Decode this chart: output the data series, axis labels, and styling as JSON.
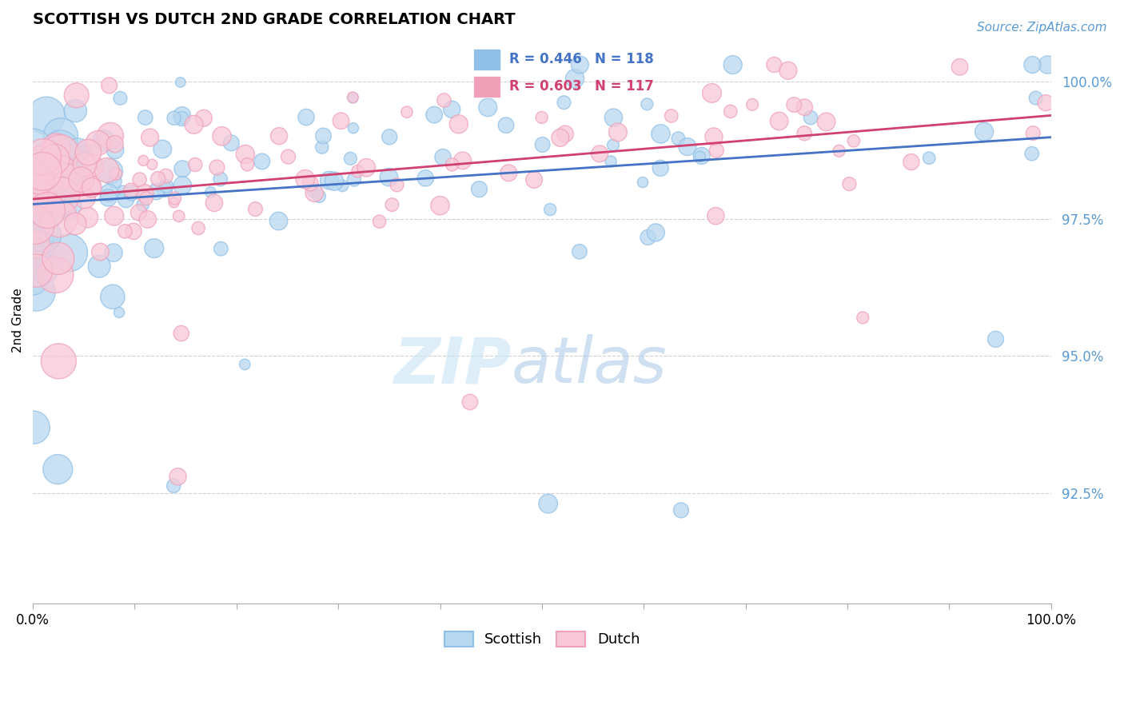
{
  "title": "SCOTTISH VS DUTCH 2ND GRADE CORRELATION CHART",
  "source": "Source: ZipAtlas.com",
  "ylabel": "2nd Grade",
  "y_ticks": [
    0.925,
    0.95,
    0.975,
    1.0
  ],
  "y_tick_labels": [
    "92.5%",
    "95.0%",
    "97.5%",
    "100.0%"
  ],
  "x_range": [
    0.0,
    1.0
  ],
  "y_range": [
    0.905,
    1.008
  ],
  "scottish_color": "#90C0E8",
  "scottish_fill": "#B8D8F0",
  "dutch_color": "#F0A0B8",
  "dutch_fill": "#F8C8D8",
  "scottish_line_color": "#4472C4",
  "dutch_line_color": "#D04070",
  "legend_bg_color": "#C8DCF0",
  "legend_scottish_box": "#90C0E8",
  "legend_dutch_box": "#F0A0B8",
  "R_scottish": 0.446,
  "N_scottish": 118,
  "R_dutch": 0.603,
  "N_dutch": 117,
  "scottish_seed": 42,
  "dutch_seed": 7,
  "n_scottish": 118,
  "n_dutch": 117,
  "watermark_zip_color": "#C8E4F4",
  "watermark_atlas_color": "#A8C8E8",
  "tick_color": "#5B9BD5",
  "source_color": "#5B9BD5"
}
